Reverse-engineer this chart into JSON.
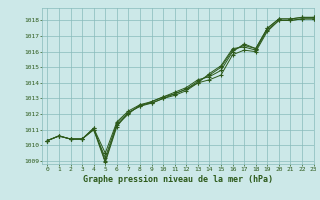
{
  "title": "Graphe pression niveau de la mer (hPa)",
  "bg_color": "#cce8e8",
  "grid_color": "#88bbbb",
  "line_color": "#2d5a1b",
  "xlim": [
    -0.5,
    23
  ],
  "ylim": [
    1008.8,
    1018.8
  ],
  "yticks": [
    1009,
    1010,
    1011,
    1012,
    1013,
    1014,
    1015,
    1016,
    1017,
    1018
  ],
  "xticks": [
    0,
    1,
    2,
    3,
    4,
    5,
    6,
    7,
    8,
    9,
    10,
    11,
    12,
    13,
    14,
    15,
    16,
    17,
    18,
    19,
    20,
    21,
    22,
    23
  ],
  "series": [
    [
      1010.3,
      1010.6,
      1010.4,
      1010.4,
      1011.0,
      1008.9,
      1011.2,
      1012.1,
      1012.5,
      1012.7,
      1013.0,
      1013.2,
      1013.5,
      1014.0,
      1014.2,
      1014.5,
      1015.8,
      1016.1,
      1016.0,
      1017.3,
      1018.0,
      1018.0,
      1018.1,
      1018.1
    ],
    [
      1010.3,
      1010.6,
      1010.4,
      1010.4,
      1011.1,
      1009.5,
      1011.5,
      1012.2,
      1012.6,
      1012.8,
      1013.1,
      1013.4,
      1013.7,
      1014.2,
      1014.4,
      1014.8,
      1016.0,
      1016.5,
      1016.2,
      1017.5,
      1018.1,
      1018.1,
      1018.2,
      1018.2
    ],
    [
      1010.3,
      1010.6,
      1010.4,
      1010.4,
      1011.0,
      1009.2,
      1011.4,
      1012.1,
      1012.5,
      1012.8,
      1013.1,
      1013.3,
      1013.6,
      1014.1,
      1014.5,
      1015.0,
      1016.1,
      1016.4,
      1016.2,
      1017.5,
      1018.1,
      1018.1,
      1018.2,
      1018.2
    ],
    [
      1010.3,
      1010.6,
      1010.4,
      1010.4,
      1011.1,
      1009.0,
      1011.3,
      1012.0,
      1012.6,
      1012.7,
      1013.0,
      1013.3,
      1013.6,
      1014.0,
      1014.6,
      1015.1,
      1016.2,
      1016.3,
      1016.1,
      1017.4,
      1018.0,
      1018.0,
      1018.1,
      1018.1
    ]
  ],
  "ylabel_fontsize": 5,
  "xlabel_fontsize": 6,
  "tick_fontsize": 4.5,
  "linewidth": 0.7,
  "markersize": 2.5
}
